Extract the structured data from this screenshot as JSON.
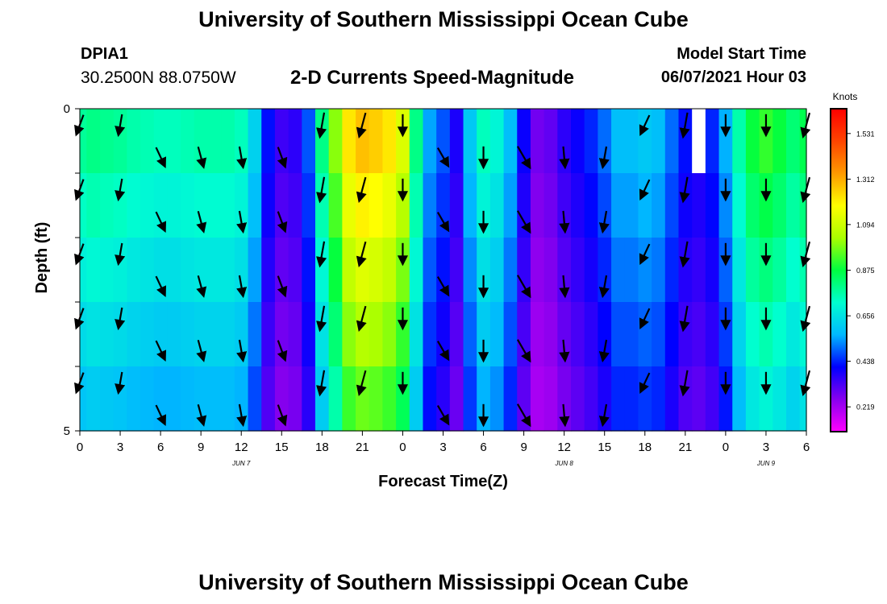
{
  "header": {
    "title": "University of Southern Mississippi Ocean Cube",
    "station": "DPIA1",
    "coords": "30.2500N  88.0750W",
    "chart_title": "2-D Currents Speed-Magnitude",
    "model_start_label": "Model Start Time",
    "model_start_value": "06/07/2021 Hour 03"
  },
  "footer": {
    "title": "University of Southern Mississippi Ocean Cube"
  },
  "colors": {
    "arrow": "#000000",
    "frame": "#000000",
    "background": "#ffffff"
  },
  "chart_data": {
    "type": "heatmap",
    "title": "2-D Currents Speed-Magnitude",
    "xlabel": "Forecast Time(Z)",
    "ylabel": "Depth (ft)",
    "x_range": [
      0,
      54
    ],
    "x_unit": "hours from JUN 7 00Z",
    "x_ticks": [
      0,
      3,
      6,
      9,
      12,
      15,
      18,
      21,
      24,
      27,
      30,
      33,
      36,
      39,
      42,
      45,
      48,
      51,
      54
    ],
    "x_tick_labels": [
      "0",
      "3",
      "6",
      "9",
      "12",
      "15",
      "18",
      "21",
      "0",
      "3",
      "6",
      "9",
      "12",
      "15",
      "18",
      "21",
      "0",
      "3",
      "6"
    ],
    "date_labels": [
      {
        "hour": 12,
        "text": "JUN 7"
      },
      {
        "hour": 36,
        "text": "JUN 8"
      },
      {
        "hour": 51,
        "text": "JUN 9"
      }
    ],
    "y_range": [
      0,
      5
    ],
    "y_ticks": [
      0,
      1,
      2,
      3,
      4,
      5
    ],
    "y_tick_labels": [
      "0",
      "",
      "",
      "",
      "",
      "5"
    ],
    "depth_bands": [
      0,
      1,
      2,
      3,
      4,
      5
    ],
    "hours": [
      0,
      1,
      2,
      3,
      4,
      5,
      6,
      7,
      8,
      9,
      10,
      11,
      12,
      13,
      14,
      15,
      16,
      17,
      18,
      19,
      20,
      21,
      22,
      23,
      24,
      25,
      26,
      27,
      28,
      29,
      30,
      31,
      32,
      33,
      34,
      35,
      36,
      37,
      38,
      39,
      40,
      41,
      42,
      43,
      44,
      45,
      46,
      47,
      48,
      49,
      50,
      51,
      52,
      53,
      54
    ],
    "speed_profile": [
      0.78,
      0.8,
      0.79,
      0.78,
      0.76,
      0.75,
      0.74,
      0.74,
      0.75,
      0.76,
      0.76,
      0.76,
      0.74,
      0.62,
      0.42,
      0.34,
      0.36,
      0.48,
      0.8,
      1.0,
      1.22,
      1.28,
      1.26,
      1.22,
      1.12,
      0.8,
      0.55,
      0.48,
      0.38,
      0.6,
      0.74,
      0.7,
      0.58,
      0.4,
      0.28,
      0.3,
      0.36,
      0.4,
      0.44,
      0.5,
      0.58,
      0.58,
      0.6,
      0.58,
      0.5,
      0.42,
      0.4,
      0.44,
      0.56,
      0.76,
      0.88,
      0.92,
      0.88,
      0.82,
      0.86
    ],
    "depth_factor": [
      1.0,
      0.94,
      0.88,
      0.82,
      0.76,
      0.7
    ],
    "gap": {
      "hour": 46,
      "band": 0
    },
    "arrows": {
      "hours": [
        0,
        3,
        6,
        9,
        12,
        15,
        18,
        21,
        24,
        27,
        30,
        33,
        36,
        39,
        42,
        45,
        48,
        51,
        54
      ],
      "depths": [
        0.25,
        1.25,
        2.25,
        3.25,
        4.25
      ],
      "depths_shifted": [
        0.75,
        1.75,
        2.75,
        3.75,
        4.75
      ],
      "shifted_hours": [
        6,
        9,
        12,
        15,
        27,
        30,
        33,
        36,
        39
      ],
      "angles": [
        -20,
        -10,
        25,
        15,
        10,
        20,
        -10,
        -15,
        0,
        30,
        0,
        30,
        5,
        -10,
        -25,
        -10,
        0,
        0,
        -15
      ],
      "lengths": [
        0.6,
        0.6,
        0.6,
        0.6,
        0.6,
        0.6,
        0.7,
        0.7,
        0.6,
        0.6,
        0.6,
        0.7,
        0.6,
        0.6,
        0.6,
        0.7,
        0.6,
        0.6,
        0.7
      ]
    },
    "colorbar": {
      "title": "Knots",
      "ticks": [
        0.219,
        0.438,
        0.656,
        0.875,
        1.094,
        1.312,
        1.531
      ],
      "tick_labels": [
        "0.219",
        "0.438",
        "0.656",
        "0.875",
        "1.094",
        "1.312",
        "1.531"
      ],
      "range": [
        0.1,
        1.65
      ],
      "gradient_stops": [
        "#ff00ff",
        "#8800ee",
        "#0000ff",
        "#00b8ff",
        "#00ffd0",
        "#00ff40",
        "#aaff00",
        "#ffff00",
        "#ff9900",
        "#ff4400",
        "#ff0000"
      ]
    }
  }
}
